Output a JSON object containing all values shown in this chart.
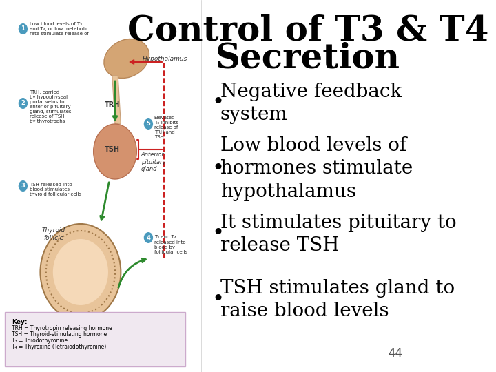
{
  "title_line1": "Control of T3 & T4",
  "title_line2": "Secretion",
  "title_fontsize": 36,
  "title_color": "#000000",
  "bullet_points": [
    "Negative feedback\nsystem",
    "Low blood levels of\nhormones stimulate\nhypothalamus",
    "It stimulates pituitary to\nrelease TSH",
    "TSH stimulates gland to\nraise blood levels"
  ],
  "bullet_fontsize": 20,
  "bullet_color": "#000000",
  "page_number": "44",
  "page_number_fontsize": 12,
  "background_color": "#ffffff",
  "left_panel_bg": "#f5f0e8",
  "key_box_bg": "#f0e8f0",
  "key_box_border": "#ccaacc"
}
